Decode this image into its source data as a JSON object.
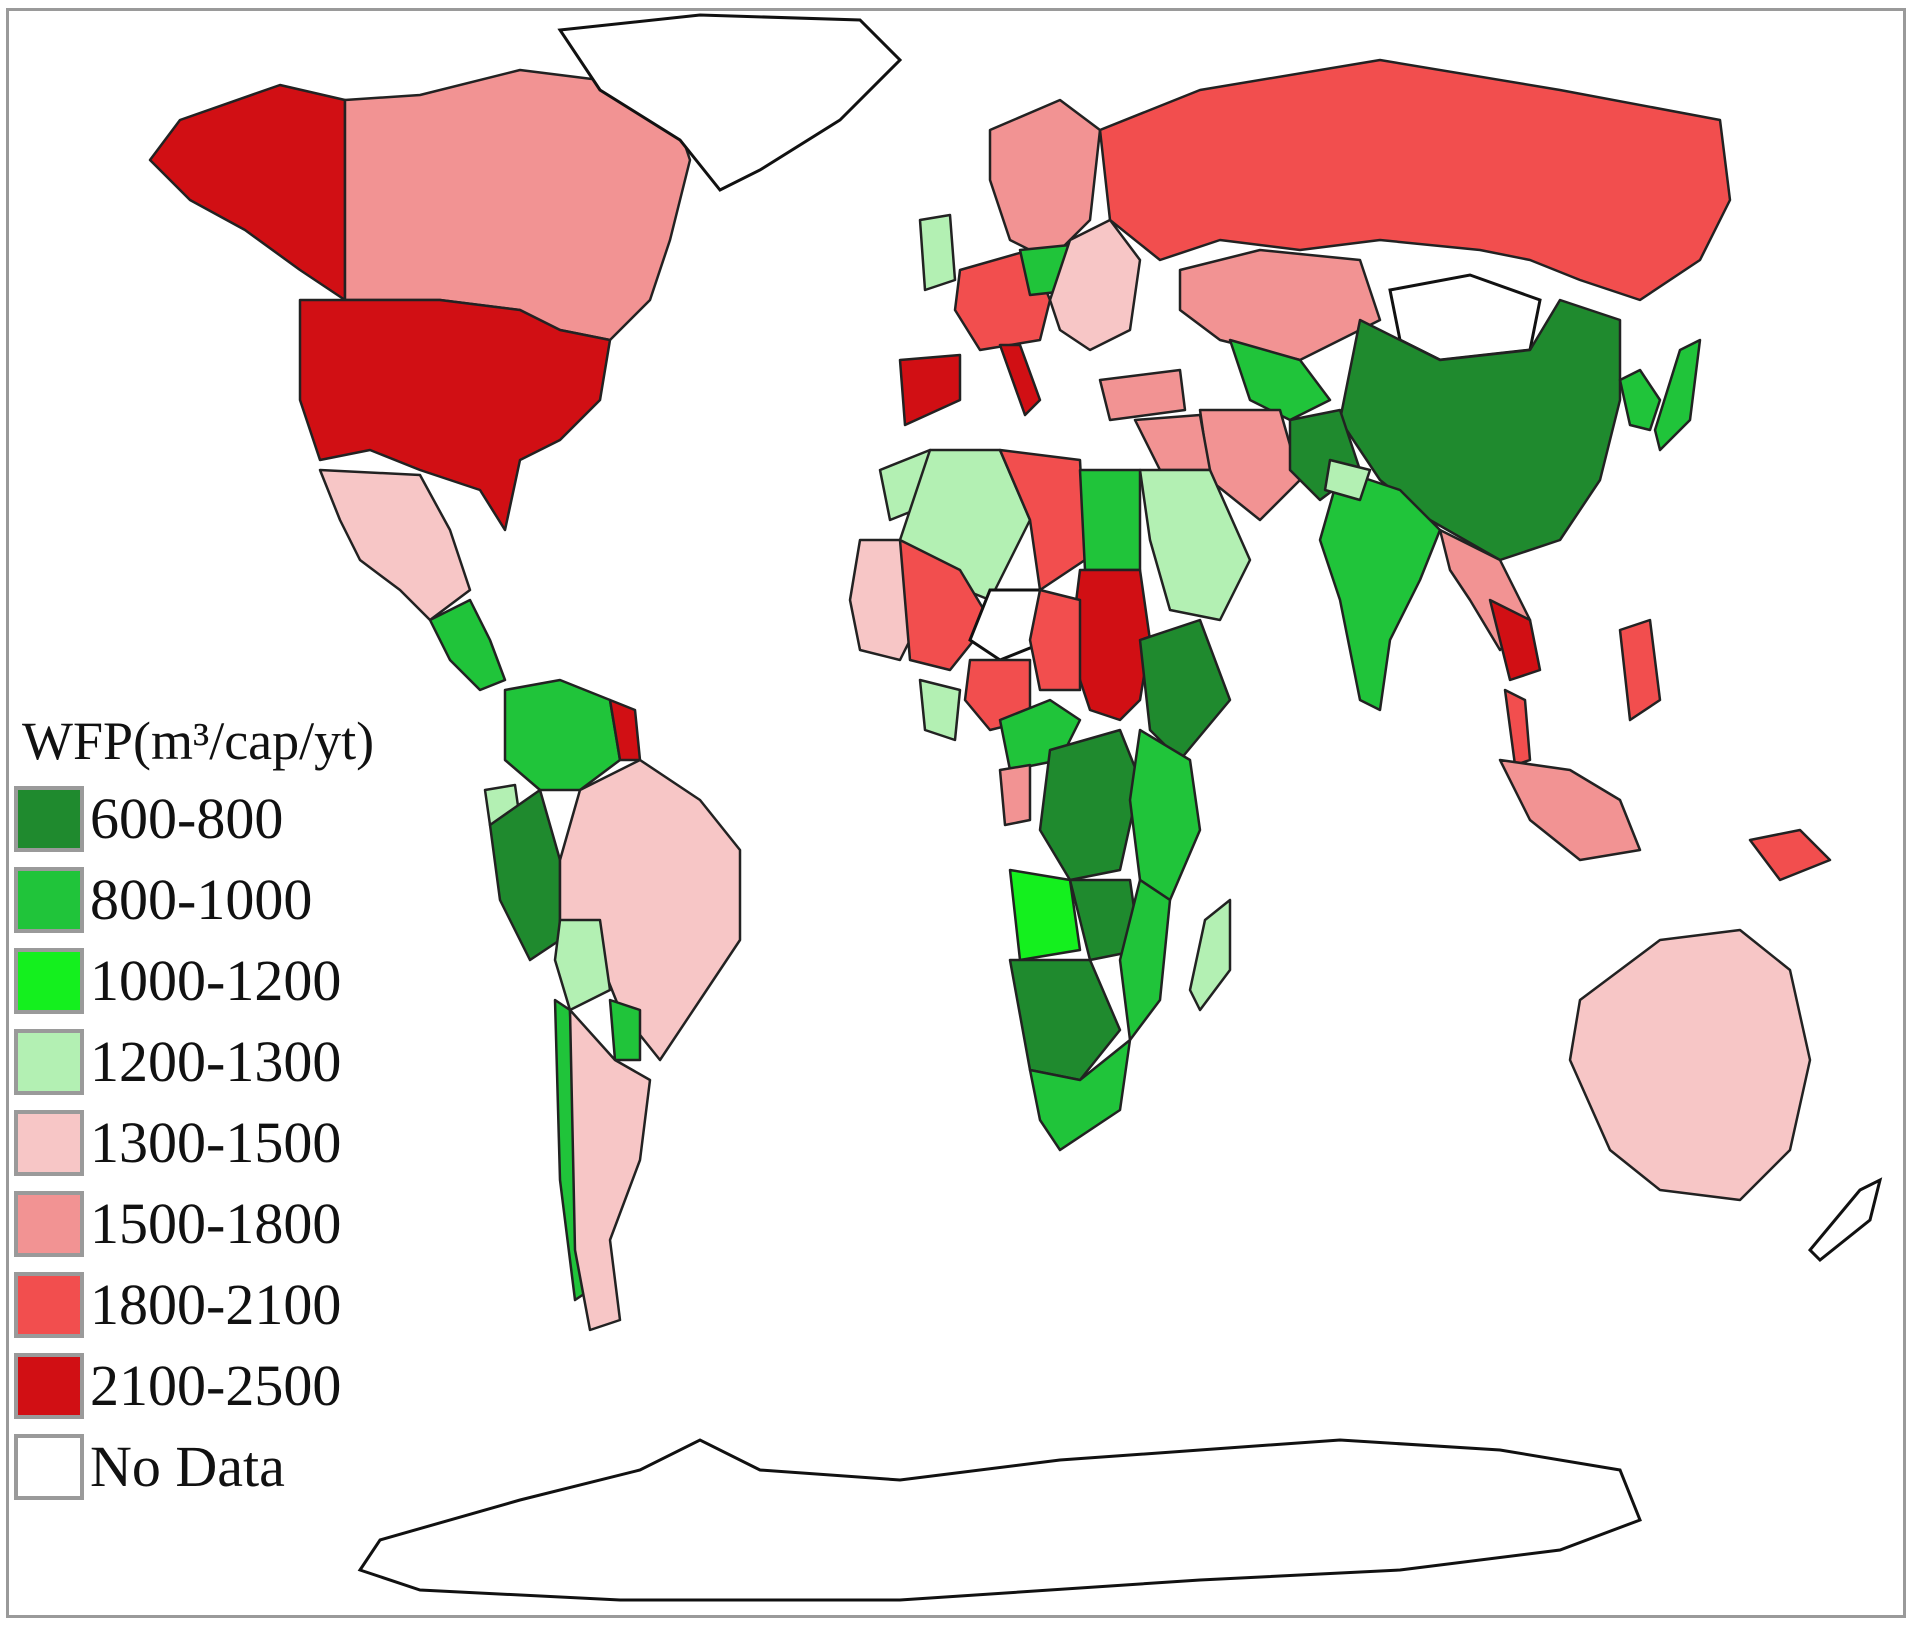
{
  "legend": {
    "title": "WFP(m³/cap/yt)",
    "classes": [
      {
        "label": "600-800",
        "color": "#1f8a2e"
      },
      {
        "label": "800-1000",
        "color": "#20c43a"
      },
      {
        "label": "1000-1200",
        "color": "#14f01e"
      },
      {
        "label": "1200-1300",
        "color": "#b3f0b3"
      },
      {
        "label": "1300-1500",
        "color": "#f7c6c6"
      },
      {
        "label": "1500-1800",
        "color": "#f29393"
      },
      {
        "label": "1800-2100",
        "color": "#f24e4e"
      },
      {
        "label": "2100-2500",
        "color": "#d10f14"
      },
      {
        "label": "No Data",
        "color": "#ffffff"
      }
    ]
  },
  "regions": [
    {
      "name": "alaska",
      "class": "2100-2500"
    },
    {
      "name": "canada",
      "class": "1500-1800"
    },
    {
      "name": "greenland",
      "class": "No Data"
    },
    {
      "name": "usa",
      "class": "2100-2500"
    },
    {
      "name": "mexico",
      "class": "1300-1500"
    },
    {
      "name": "central-america",
      "class": "800-1000"
    },
    {
      "name": "venezuela-colombia",
      "class": "800-1000"
    },
    {
      "name": "guyana",
      "class": "2100-2500"
    },
    {
      "name": "ecuador",
      "class": "1200-1300"
    },
    {
      "name": "peru",
      "class": "600-800"
    },
    {
      "name": "brazil",
      "class": "1300-1500"
    },
    {
      "name": "bolivia",
      "class": "1200-1300"
    },
    {
      "name": "paraguay",
      "class": "800-1000"
    },
    {
      "name": "chile",
      "class": "800-1000"
    },
    {
      "name": "argentina",
      "class": "1300-1500"
    },
    {
      "name": "scandinavia",
      "class": "1500-1800"
    },
    {
      "name": "uk",
      "class": "1200-1300"
    },
    {
      "name": "western-europe",
      "class": "1800-2100"
    },
    {
      "name": "poland",
      "class": "800-1000"
    },
    {
      "name": "eastern-europe",
      "class": "1300-1500"
    },
    {
      "name": "spain",
      "class": "2100-2500"
    },
    {
      "name": "italy",
      "class": "2100-2500"
    },
    {
      "name": "russia",
      "class": "1800-2100"
    },
    {
      "name": "kazakhstan",
      "class": "1500-1800"
    },
    {
      "name": "mongolia",
      "class": "No Data"
    },
    {
      "name": "china",
      "class": "600-800"
    },
    {
      "name": "korea-japan",
      "class": "800-1000"
    },
    {
      "name": "central-asia",
      "class": "800-1000"
    },
    {
      "name": "turkey",
      "class": "1500-1800"
    },
    {
      "name": "iran",
      "class": "1500-1800"
    },
    {
      "name": "middle-east",
      "class": "1500-1800"
    },
    {
      "name": "saudi-arabia",
      "class": "1200-1300"
    },
    {
      "name": "pakistan",
      "class": "600-800"
    },
    {
      "name": "india",
      "class": "800-1000"
    },
    {
      "name": "nepal",
      "class": "1200-1300"
    },
    {
      "name": "se-asia",
      "class": "1500-1800"
    },
    {
      "name": "thailand",
      "class": "2100-2500"
    },
    {
      "name": "malaysia",
      "class": "1800-2100"
    },
    {
      "name": "indonesia",
      "class": "1500-1800"
    },
    {
      "name": "philippines",
      "class": "1800-2100"
    },
    {
      "name": "papua",
      "class": "1800-2100"
    },
    {
      "name": "australia",
      "class": "1300-1500"
    },
    {
      "name": "new-zealand",
      "class": "No Data"
    },
    {
      "name": "morocco",
      "class": "1200-1300"
    },
    {
      "name": "algeria",
      "class": "1200-1300"
    },
    {
      "name": "libya",
      "class": "1800-2100"
    },
    {
      "name": "egypt",
      "class": "800-1000"
    },
    {
      "name": "sudan",
      "class": "2100-2500"
    },
    {
      "name": "ethiopia",
      "class": "600-800"
    },
    {
      "name": "west-africa",
      "class": "1300-1500"
    },
    {
      "name": "mali",
      "class": "1800-2100"
    },
    {
      "name": "niger",
      "class": "No Data"
    },
    {
      "name": "chad",
      "class": "1800-2100"
    },
    {
      "name": "nigeria",
      "class": "1800-2100"
    },
    {
      "name": "guinea-coast",
      "class": "1200-1300"
    },
    {
      "name": "cameroon",
      "class": "800-1000"
    },
    {
      "name": "gabon",
      "class": "1500-1800"
    },
    {
      "name": "drc",
      "class": "600-800"
    },
    {
      "name": "east-africa",
      "class": "800-1000"
    },
    {
      "name": "angola",
      "class": "1000-1200"
    },
    {
      "name": "zambia",
      "class": "600-800"
    },
    {
      "name": "mozambique",
      "class": "800-1000"
    },
    {
      "name": "namibia-botswana",
      "class": "600-800"
    },
    {
      "name": "south-africa",
      "class": "800-1000"
    },
    {
      "name": "madagascar",
      "class": "1200-1300"
    },
    {
      "name": "antarctica",
      "class": "No Data"
    }
  ]
}
